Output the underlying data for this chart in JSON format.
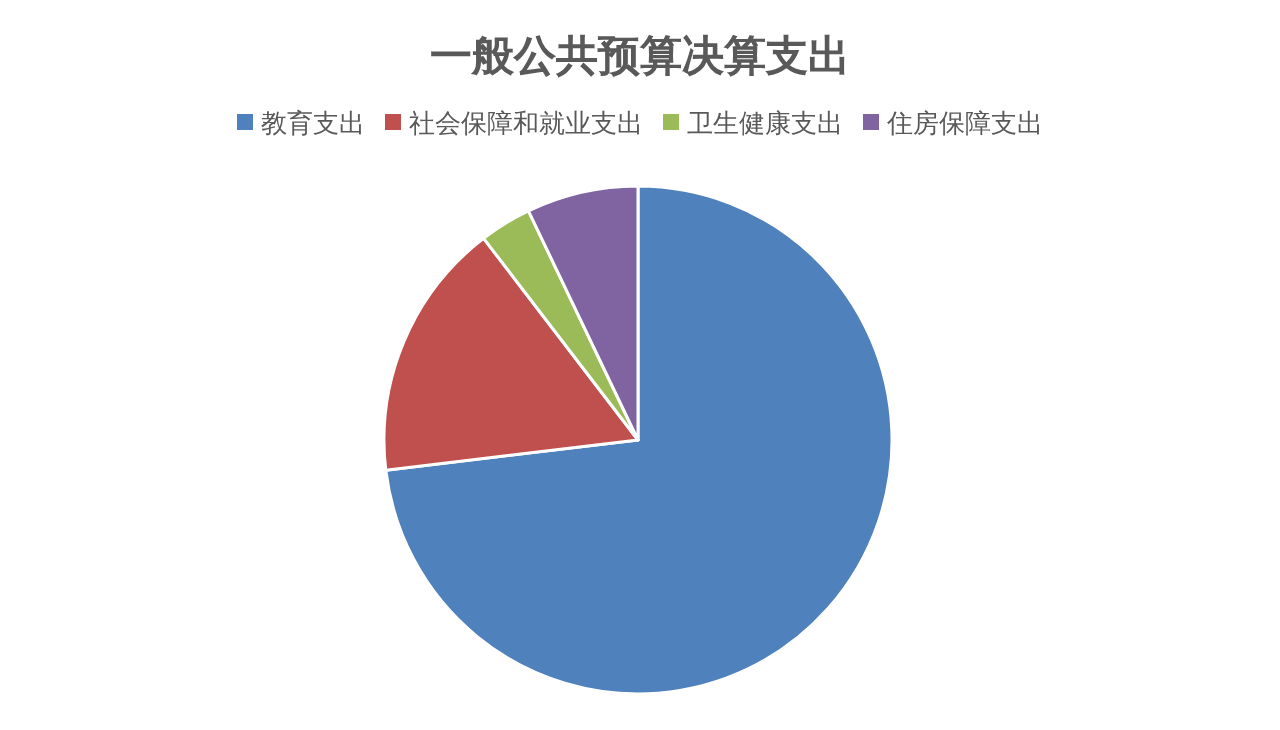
{
  "chart_data": {
    "type": "pie",
    "title": "一般公共预算决算支出",
    "categories": [
      "教育支出",
      "社会保障和就业支出",
      "卫生健康支出",
      "住房保障支出"
    ],
    "values": [
      73.1,
      16.5,
      3.3,
      7.1
    ],
    "colors": [
      "#4f81bd",
      "#c0504d",
      "#9bbb59",
      "#8064a2"
    ],
    "legend": "top"
  }
}
